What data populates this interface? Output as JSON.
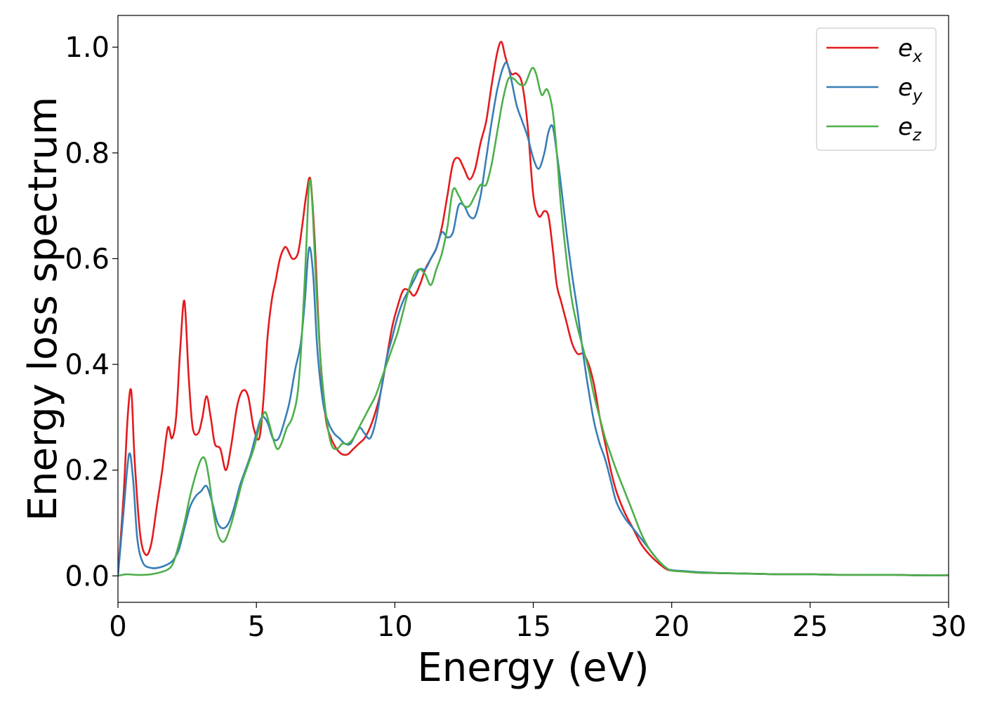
{
  "chart_data": {
    "type": "line",
    "title": "",
    "xlabel": "Energy (eV)",
    "ylabel": "Energy loss spectrum",
    "xlim": [
      0,
      30
    ],
    "ylim": [
      -0.05,
      1.06
    ],
    "xticks": [
      0,
      5,
      10,
      15,
      20,
      25,
      30
    ],
    "xtick_labels": [
      "0",
      "5",
      "10",
      "15",
      "20",
      "25",
      "30"
    ],
    "yticks": [
      0.0,
      0.2,
      0.4,
      0.6,
      0.8,
      1.0
    ],
    "ytick_labels": [
      "0.0",
      "0.2",
      "0.4",
      "0.6",
      "0.8",
      "1.0"
    ],
    "grid": false,
    "legend_position": "top-right",
    "series": [
      {
        "name": "e_x",
        "label_base": "e",
        "label_sub": "x",
        "color": "#e41a1c",
        "x": [
          0,
          0.2,
          0.35,
          0.48,
          0.6,
          0.8,
          1.0,
          1.2,
          1.4,
          1.6,
          1.8,
          1.95,
          2.1,
          2.25,
          2.4,
          2.55,
          2.7,
          2.9,
          3.05,
          3.2,
          3.35,
          3.5,
          3.7,
          3.9,
          4.1,
          4.3,
          4.5,
          4.7,
          4.9,
          5.1,
          5.25,
          5.4,
          5.55,
          5.7,
          5.85,
          6.0,
          6.1,
          6.3,
          6.5,
          6.65,
          6.8,
          6.95,
          7.1,
          7.3,
          7.5,
          7.7,
          7.9,
          8.1,
          8.3,
          8.5,
          8.7,
          8.9,
          9.1,
          9.3,
          9.5,
          9.7,
          9.9,
          10.1,
          10.3,
          10.5,
          10.7,
          10.9,
          11.1,
          11.3,
          11.5,
          11.7,
          11.9,
          12.1,
          12.3,
          12.5,
          12.7,
          12.9,
          13.1,
          13.3,
          13.5,
          13.7,
          13.85,
          14.0,
          14.2,
          14.4,
          14.6,
          14.8,
          15.0,
          15.2,
          15.4,
          15.55,
          15.7,
          15.85,
          16.0,
          16.2,
          16.4,
          16.6,
          16.8,
          17.0,
          17.2,
          17.4,
          17.6,
          17.8,
          18.0,
          18.3,
          18.6,
          18.9,
          19.2,
          19.5,
          19.8,
          20.0,
          20.5,
          21,
          22,
          23,
          24,
          25,
          26,
          27,
          28,
          29,
          30
        ],
        "y": [
          0.0,
          0.15,
          0.3,
          0.35,
          0.22,
          0.08,
          0.04,
          0.06,
          0.13,
          0.2,
          0.28,
          0.26,
          0.3,
          0.43,
          0.52,
          0.38,
          0.28,
          0.27,
          0.3,
          0.34,
          0.3,
          0.25,
          0.24,
          0.2,
          0.25,
          0.32,
          0.35,
          0.34,
          0.28,
          0.26,
          0.33,
          0.45,
          0.52,
          0.56,
          0.6,
          0.62,
          0.62,
          0.6,
          0.61,
          0.66,
          0.72,
          0.75,
          0.64,
          0.42,
          0.3,
          0.26,
          0.24,
          0.23,
          0.23,
          0.24,
          0.25,
          0.26,
          0.28,
          0.31,
          0.35,
          0.41,
          0.47,
          0.51,
          0.54,
          0.54,
          0.53,
          0.55,
          0.58,
          0.6,
          0.62,
          0.66,
          0.72,
          0.78,
          0.79,
          0.77,
          0.75,
          0.77,
          0.82,
          0.86,
          0.93,
          0.99,
          1.01,
          0.98,
          0.95,
          0.95,
          0.93,
          0.85,
          0.72,
          0.68,
          0.69,
          0.68,
          0.62,
          0.55,
          0.52,
          0.48,
          0.44,
          0.42,
          0.42,
          0.4,
          0.36,
          0.3,
          0.25,
          0.2,
          0.16,
          0.12,
          0.09,
          0.06,
          0.04,
          0.025,
          0.013,
          0.01,
          0.008,
          0.006,
          0.005,
          0.004,
          0.003,
          0.003,
          0.002,
          0.002,
          0.002,
          0.001,
          0.001
        ]
      },
      {
        "name": "e_y",
        "label_base": "e",
        "label_sub": "y",
        "color": "#377eb8",
        "x": [
          0,
          0.2,
          0.4,
          0.55,
          0.7,
          0.9,
          1.2,
          1.5,
          1.8,
          2.0,
          2.2,
          2.4,
          2.6,
          2.8,
          3.0,
          3.2,
          3.4,
          3.6,
          3.8,
          4.0,
          4.2,
          4.4,
          4.6,
          4.8,
          5.0,
          5.2,
          5.4,
          5.6,
          5.8,
          6.0,
          6.2,
          6.4,
          6.6,
          6.75,
          6.9,
          7.05,
          7.2,
          7.4,
          7.6,
          7.8,
          8.0,
          8.2,
          8.4,
          8.6,
          8.75,
          8.9,
          9.1,
          9.3,
          9.5,
          9.7,
          9.9,
          10.1,
          10.3,
          10.5,
          10.7,
          10.9,
          11.1,
          11.3,
          11.5,
          11.7,
          11.9,
          12.1,
          12.3,
          12.5,
          12.7,
          12.9,
          13.1,
          13.3,
          13.5,
          13.7,
          13.9,
          14.05,
          14.2,
          14.4,
          14.6,
          14.8,
          15.0,
          15.2,
          15.4,
          15.55,
          15.7,
          15.85,
          16.0,
          16.2,
          16.4,
          16.6,
          16.8,
          17.0,
          17.2,
          17.4,
          17.6,
          17.8,
          18.0,
          18.3,
          18.6,
          18.9,
          19.2,
          19.5,
          19.8,
          20.0,
          20.5,
          21,
          22,
          23,
          24,
          25,
          26,
          27,
          28,
          29,
          30
        ],
        "y": [
          0.0,
          0.12,
          0.23,
          0.18,
          0.07,
          0.025,
          0.015,
          0.016,
          0.022,
          0.03,
          0.05,
          0.09,
          0.13,
          0.15,
          0.16,
          0.17,
          0.14,
          0.1,
          0.09,
          0.1,
          0.13,
          0.17,
          0.2,
          0.23,
          0.27,
          0.3,
          0.29,
          0.26,
          0.26,
          0.29,
          0.33,
          0.39,
          0.44,
          0.52,
          0.62,
          0.57,
          0.43,
          0.33,
          0.29,
          0.27,
          0.26,
          0.25,
          0.25,
          0.27,
          0.28,
          0.27,
          0.26,
          0.29,
          0.35,
          0.41,
          0.45,
          0.49,
          0.52,
          0.54,
          0.56,
          0.58,
          0.58,
          0.6,
          0.62,
          0.65,
          0.64,
          0.65,
          0.7,
          0.7,
          0.68,
          0.68,
          0.72,
          0.79,
          0.86,
          0.92,
          0.96,
          0.97,
          0.94,
          0.89,
          0.86,
          0.83,
          0.79,
          0.77,
          0.8,
          0.84,
          0.85,
          0.8,
          0.74,
          0.65,
          0.57,
          0.5,
          0.42,
          0.35,
          0.29,
          0.25,
          0.22,
          0.18,
          0.14,
          0.11,
          0.09,
          0.07,
          0.05,
          0.03,
          0.015,
          0.011,
          0.009,
          0.007,
          0.005,
          0.004,
          0.003,
          0.003,
          0.002,
          0.002,
          0.002,
          0.001,
          0.001
        ]
      },
      {
        "name": "e_z",
        "label_base": "e",
        "label_sub": "z",
        "color": "#4daf4a",
        "x": [
          0,
          0.3,
          0.6,
          1.0,
          1.4,
          1.8,
          2.0,
          2.2,
          2.4,
          2.6,
          2.8,
          3.0,
          3.15,
          3.3,
          3.45,
          3.6,
          3.75,
          3.9,
          4.1,
          4.3,
          4.5,
          4.7,
          4.9,
          5.1,
          5.3,
          5.45,
          5.6,
          5.75,
          5.9,
          6.1,
          6.3,
          6.5,
          6.65,
          6.8,
          6.9,
          7.0,
          7.15,
          7.3,
          7.5,
          7.7,
          7.9,
          8.1,
          8.3,
          8.5,
          8.7,
          8.9,
          9.1,
          9.3,
          9.5,
          9.7,
          9.9,
          10.1,
          10.3,
          10.5,
          10.7,
          10.9,
          11.1,
          11.3,
          11.5,
          11.7,
          11.9,
          12.1,
          12.3,
          12.5,
          12.7,
          12.9,
          13.1,
          13.3,
          13.5,
          13.7,
          13.9,
          14.1,
          14.3,
          14.5,
          14.7,
          14.95,
          15.1,
          15.3,
          15.5,
          15.7,
          15.85,
          16.0,
          16.2,
          16.4,
          16.6,
          16.8,
          17.0,
          17.2,
          17.4,
          17.6,
          17.8,
          18.0,
          18.3,
          18.6,
          18.9,
          19.2,
          19.5,
          19.8,
          20.0,
          20.5,
          21,
          22,
          23,
          24,
          25,
          26,
          27,
          28,
          29,
          30
        ],
        "y": [
          0.0,
          0.003,
          0.002,
          0.002,
          0.005,
          0.012,
          0.025,
          0.06,
          0.1,
          0.15,
          0.19,
          0.22,
          0.22,
          0.18,
          0.12,
          0.08,
          0.065,
          0.07,
          0.1,
          0.14,
          0.18,
          0.21,
          0.24,
          0.28,
          0.31,
          0.29,
          0.26,
          0.24,
          0.25,
          0.28,
          0.3,
          0.35,
          0.46,
          0.62,
          0.74,
          0.72,
          0.56,
          0.42,
          0.31,
          0.25,
          0.24,
          0.25,
          0.25,
          0.26,
          0.28,
          0.3,
          0.32,
          0.34,
          0.37,
          0.4,
          0.43,
          0.46,
          0.5,
          0.54,
          0.57,
          0.58,
          0.57,
          0.55,
          0.58,
          0.61,
          0.66,
          0.73,
          0.72,
          0.7,
          0.7,
          0.72,
          0.74,
          0.74,
          0.78,
          0.84,
          0.9,
          0.94,
          0.94,
          0.93,
          0.93,
          0.96,
          0.95,
          0.91,
          0.92,
          0.88,
          0.8,
          0.7,
          0.6,
          0.52,
          0.47,
          0.43,
          0.39,
          0.34,
          0.3,
          0.26,
          0.23,
          0.2,
          0.16,
          0.12,
          0.08,
          0.05,
          0.03,
          0.015,
          0.01,
          0.008,
          0.006,
          0.005,
          0.004,
          0.003,
          0.003,
          0.002,
          0.002,
          0.002,
          0.001,
          0.001
        ]
      }
    ]
  }
}
